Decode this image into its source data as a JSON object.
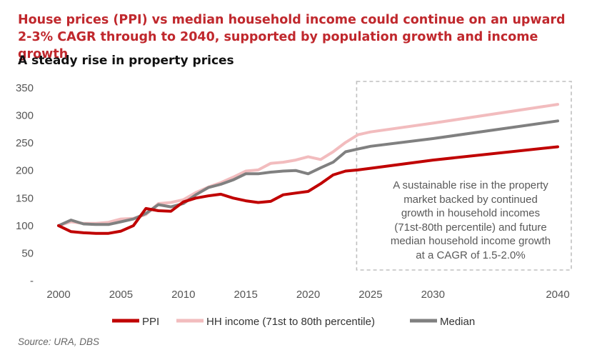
{
  "header": {
    "headline_line1": "House prices (PPI) vs median household income could continue on an upward",
    "headline_line2": "2-3% CAGR through to 2040, supported by population growth and income growth",
    "subtitle": "A steady rise in property prices"
  },
  "annotation": {
    "line1": "A sustainable rise in the property",
    "line2": "market backed by continued",
    "line3": "growth in household incomes",
    "line4": "(71st-80th percentile) and future",
    "line5": "median household income growth",
    "line6": "at a CAGR of 1.5-2.0%"
  },
  "footer": {
    "source": "Source: URA, DBS"
  },
  "colors": {
    "ppi": "#c00000",
    "hh_income": "#f2bcbe",
    "median": "#808080",
    "headline": "#c0282d",
    "forecast_box": "#bfbfbf"
  },
  "chart_data": {
    "type": "line",
    "title": "A steady rise in property prices",
    "xlabel": "",
    "ylabel": "",
    "xlim": [
      2000,
      2040
    ],
    "ylim": [
      0,
      350
    ],
    "y_ticks": [
      {
        "value": 350,
        "label": "350"
      },
      {
        "value": 300,
        "label": "300"
      },
      {
        "value": 250,
        "label": "250"
      },
      {
        "value": 200,
        "label": "200"
      },
      {
        "value": 150,
        "label": "150"
      },
      {
        "value": 100,
        "label": "100"
      },
      {
        "value": 50,
        "label": "50"
      },
      {
        "value": 0,
        "label": "-"
      }
    ],
    "x_ticks": [
      "2000",
      "2005",
      "2010",
      "2015",
      "2020",
      "2025",
      "2030",
      "2040"
    ],
    "legend_position": "bottom",
    "forecast_region": [
      2024,
      2040
    ],
    "series": [
      {
        "name": "PPI",
        "color": "#c00000",
        "points": [
          [
            2000,
            100
          ],
          [
            2001,
            89
          ],
          [
            2002,
            87
          ],
          [
            2003,
            86
          ],
          [
            2004,
            86
          ],
          [
            2005,
            90
          ],
          [
            2006,
            100
          ],
          [
            2007,
            131
          ],
          [
            2008,
            127
          ],
          [
            2009,
            126
          ],
          [
            2010,
            143
          ],
          [
            2011,
            150
          ],
          [
            2012,
            154
          ],
          [
            2013,
            157
          ],
          [
            2014,
            150
          ],
          [
            2015,
            145
          ],
          [
            2016,
            142
          ],
          [
            2017,
            144
          ],
          [
            2018,
            156
          ],
          [
            2019,
            159
          ],
          [
            2020,
            162
          ],
          [
            2021,
            176
          ],
          [
            2022,
            192
          ],
          [
            2023,
            199
          ],
          [
            2024,
            201
          ],
          [
            2025,
            204
          ],
          [
            2030,
            219
          ],
          [
            2040,
            243
          ]
        ]
      },
      {
        "name": "HH income (71st to 80th percentile)",
        "color": "#f2bcbe",
        "points": [
          [
            2000,
            100
          ],
          [
            2001,
            107
          ],
          [
            2002,
            104
          ],
          [
            2003,
            104
          ],
          [
            2004,
            106
          ],
          [
            2005,
            112
          ],
          [
            2006,
            113
          ],
          [
            2007,
            120
          ],
          [
            2008,
            140
          ],
          [
            2009,
            142
          ],
          [
            2010,
            147
          ],
          [
            2011,
            160
          ],
          [
            2012,
            170
          ],
          [
            2013,
            178
          ],
          [
            2014,
            188
          ],
          [
            2015,
            199
          ],
          [
            2016,
            201
          ],
          [
            2017,
            213
          ],
          [
            2018,
            215
          ],
          [
            2019,
            219
          ],
          [
            2020,
            225
          ],
          [
            2021,
            220
          ],
          [
            2022,
            234
          ],
          [
            2023,
            251
          ],
          [
            2024,
            265
          ],
          [
            2025,
            270
          ],
          [
            2030,
            286
          ],
          [
            2040,
            320
          ]
        ]
      },
      {
        "name": "Median",
        "color": "#808080",
        "points": [
          [
            2000,
            100
          ],
          [
            2001,
            110
          ],
          [
            2002,
            103
          ],
          [
            2003,
            102
          ],
          [
            2004,
            102
          ],
          [
            2005,
            107
          ],
          [
            2006,
            112
          ],
          [
            2007,
            122
          ],
          [
            2008,
            138
          ],
          [
            2009,
            134
          ],
          [
            2010,
            140
          ],
          [
            2011,
            156
          ],
          [
            2012,
            169
          ],
          [
            2013,
            175
          ],
          [
            2014,
            183
          ],
          [
            2015,
            194
          ],
          [
            2016,
            194
          ],
          [
            2017,
            197
          ],
          [
            2018,
            199
          ],
          [
            2019,
            200
          ],
          [
            2020,
            194
          ],
          [
            2021,
            205
          ],
          [
            2022,
            215
          ],
          [
            2023,
            234
          ],
          [
            2024,
            239
          ],
          [
            2025,
            244
          ],
          [
            2030,
            258
          ],
          [
            2040,
            290
          ]
        ]
      }
    ]
  }
}
